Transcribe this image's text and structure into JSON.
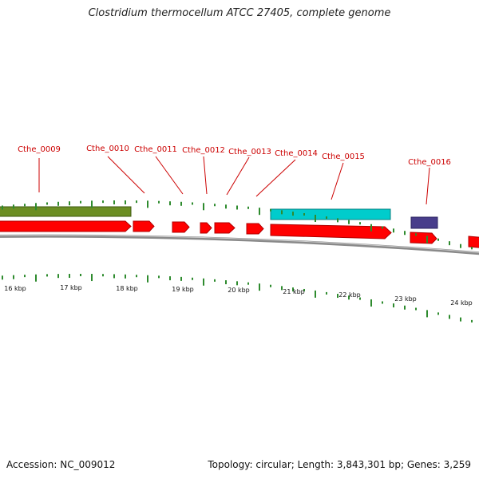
{
  "title": "Clostridium thermocellum ATCC 27405, complete genome",
  "footer": {
    "accession": "Accession: NC_009012",
    "summary": "Topology: circular; Length: 3,843,301 bp; Genes: 3,259"
  },
  "colors": {
    "backbone": "#8a8a8a",
    "gene_default": "#ff0000",
    "gene_olive": "#6b8e23",
    "gene_cyan": "#00cccc",
    "gene_purple": "#483d8b",
    "label": "#cc0000",
    "tick": "#2e8b2e"
  },
  "axis": {
    "tick_labels": [
      "16 kbp",
      "17 kbp",
      "18 kbp",
      "19 kbp",
      "20 kbp",
      "21 kbp",
      "22 kbp",
      "23 kbp",
      "24 kbp"
    ]
  },
  "genes": [
    {
      "label": "Cthe_0009",
      "color": "gene_olive"
    },
    {
      "label": "Cthe_0010",
      "color": "gene_default"
    },
    {
      "label": "Cthe_0011",
      "color": "gene_default"
    },
    {
      "label": "Cthe_0012",
      "color": "gene_default"
    },
    {
      "label": "Cthe_0013",
      "color": "gene_default"
    },
    {
      "label": "Cthe_0014",
      "color": "gene_default"
    },
    {
      "label": "Cthe_0015",
      "color": "gene_cyan"
    },
    {
      "label": "Cthe_0016",
      "color": "gene_purple"
    }
  ]
}
